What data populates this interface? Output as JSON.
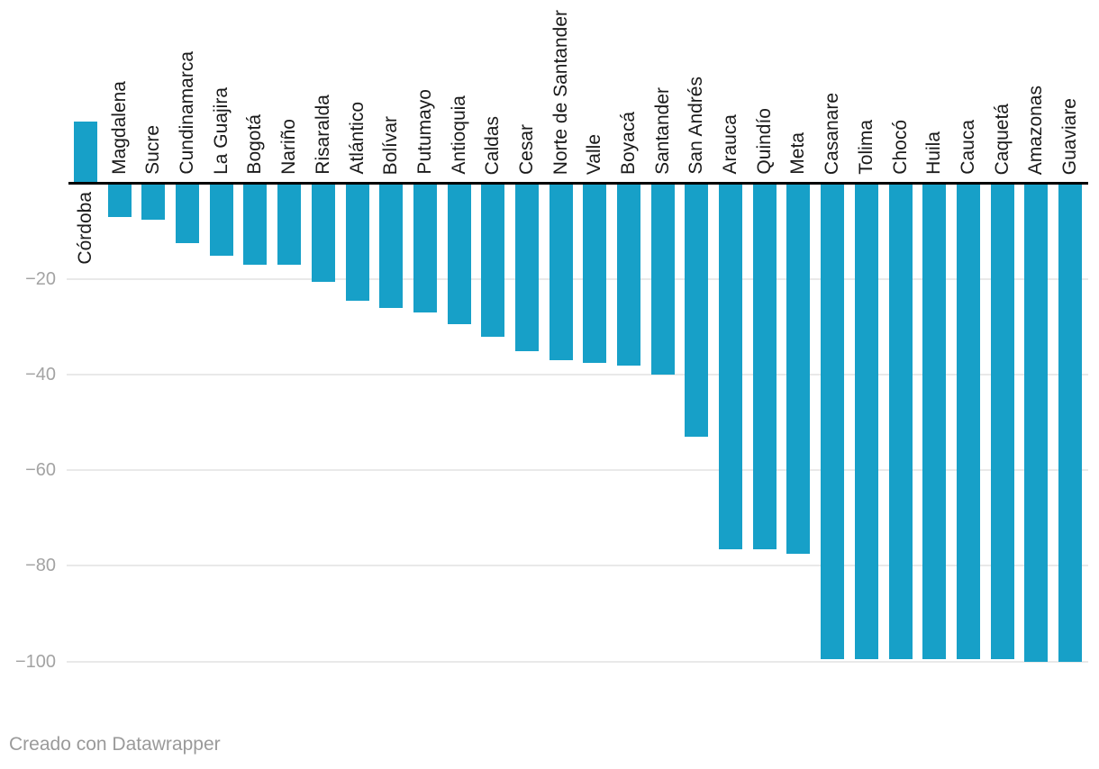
{
  "chart_data": {
    "type": "bar",
    "title": "",
    "xlabel": "",
    "ylabel": "",
    "categories": [
      "Córdoba",
      "Magdalena",
      "Sucre",
      "Cundinamarca",
      "La Guajira",
      "Bogotá",
      "Nariño",
      "Risaralda",
      "Atlántico",
      "Bolívar",
      "Putumayo",
      "Antioquia",
      "Caldas",
      "Cesar",
      "Norte de Santander",
      "Valle",
      "Boyacá",
      "Santander",
      "San Andrés",
      "Arauca",
      "Quindío",
      "Meta",
      "Casanare",
      "Tolima",
      "Chocó",
      "Huila",
      "Cauca",
      "Caquetá",
      "Amazonas",
      "Guaviare"
    ],
    "values": [
      13,
      -7,
      -7.5,
      -12.5,
      -15,
      -17,
      -17,
      -20.5,
      -24.5,
      -26,
      -27,
      -29.5,
      -32,
      -35,
      -37,
      -37.5,
      -38,
      -40,
      -53,
      -76.5,
      -76.5,
      -77.5,
      -99.5,
      -99.5,
      -99.5,
      -99.5,
      -99.5,
      -99.5,
      -100,
      -100
    ],
    "ylim": [
      -100,
      13
    ],
    "yticks": [
      -20,
      -40,
      -60,
      -80,
      -100
    ],
    "ytick_labels": [
      "−20",
      "−40",
      "−60",
      "−80",
      "−100"
    ],
    "grid": "horizontal",
    "legend": "none",
    "colors": {
      "bar": "#17a0c8",
      "zero_axis": "#000000",
      "gridline": "#e9e9e9",
      "tick_text": "#a3a3a3",
      "label_text": "#1a1a1a",
      "credit_text": "#9a9a9a"
    }
  },
  "footer": {
    "credit": "Creado con Datawrapper"
  }
}
